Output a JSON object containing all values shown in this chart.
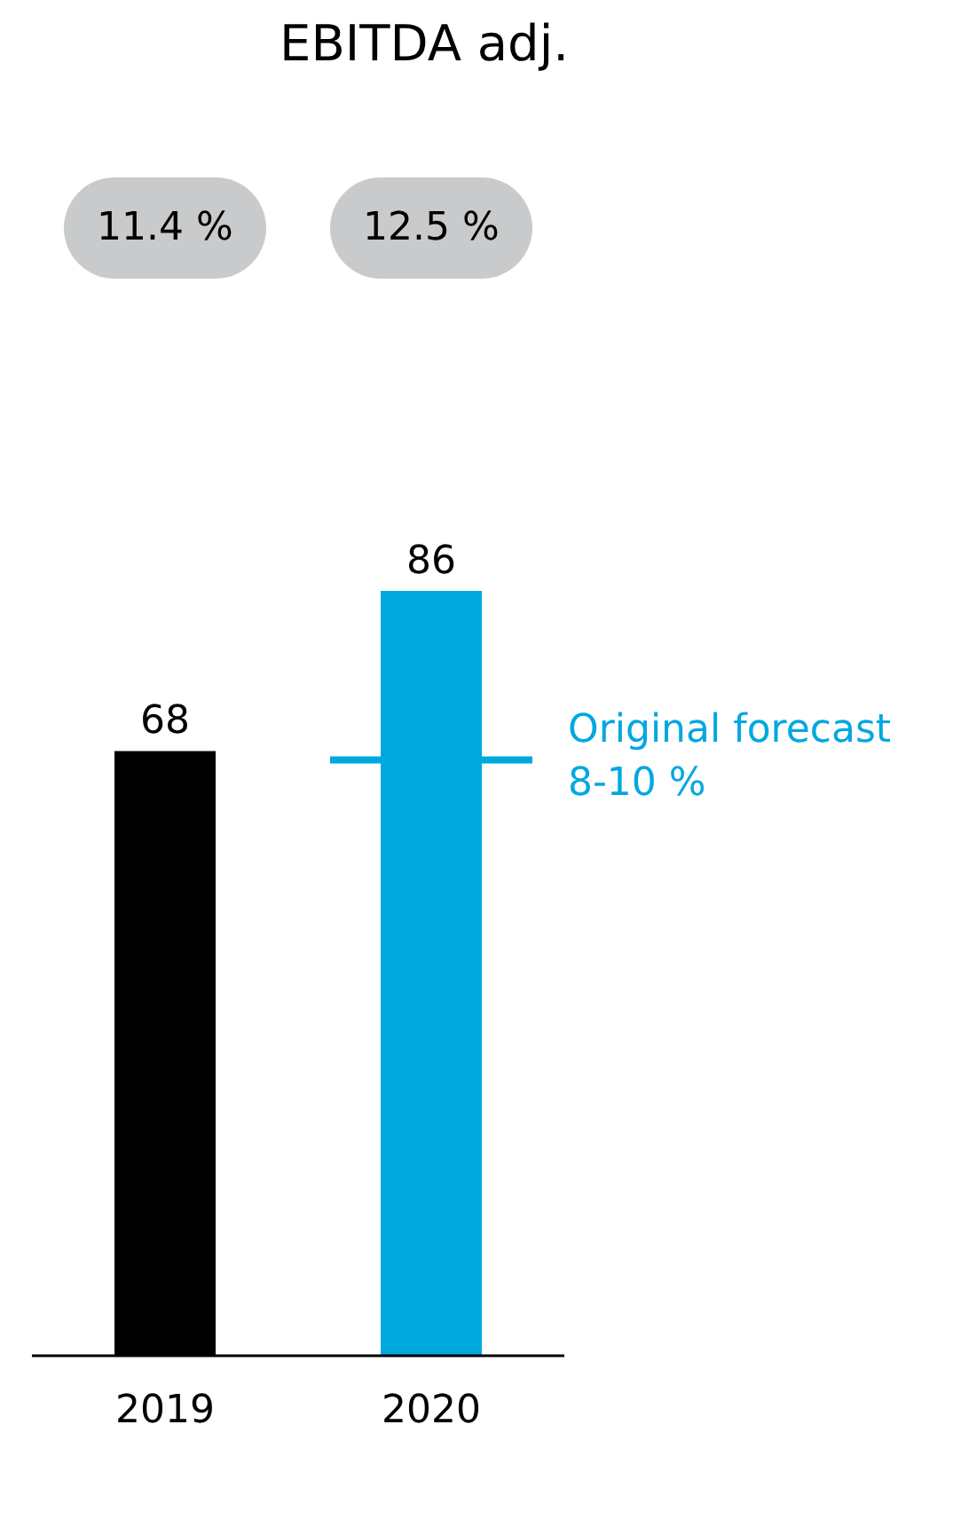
{
  "chart_data": {
    "type": "bar",
    "title": "EBITDA adj.",
    "categories": [
      "2019",
      "2020"
    ],
    "values": [
      68,
      86
    ],
    "colors": [
      "#000000",
      "#00a8e0"
    ],
    "data_labels": true,
    "annotations": [
      "11.4 %",
      "12.5 %"
    ],
    "ref_lines": [
      {
        "axis": "y",
        "value": 67,
        "label": "Original forecast 8-10 %",
        "color": "#00a8e0"
      }
    ]
  }
}
